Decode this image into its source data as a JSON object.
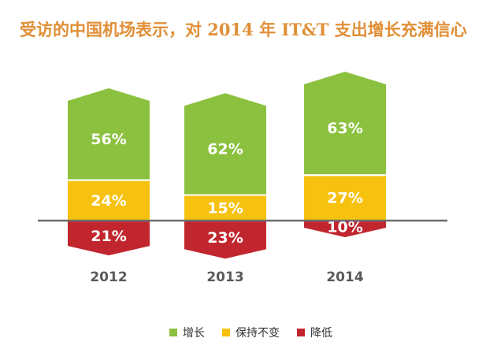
{
  "title": "受访的中国机场表示，对 2014 年 IT&T 支出增长充满信心",
  "colors": {
    "increase": "#8bc13f",
    "maintain": "#f7c10f",
    "decrease": "#c1262e",
    "baseline": "#6d6d6d",
    "tick": "#5a5a5a"
  },
  "chart_data": {
    "type": "bar",
    "stacked": true,
    "categories": [
      "2012",
      "2013",
      "2014"
    ],
    "series": [
      {
        "name": "增长",
        "key": "increase",
        "values": [
          56,
          62,
          63
        ]
      },
      {
        "name": "保持不变",
        "key": "maintain",
        "values": [
          24,
          15,
          27
        ]
      },
      {
        "name": "降低",
        "key": "decrease",
        "values": [
          21,
          23,
          10
        ]
      }
    ],
    "value_suffix": "%",
    "legend": "bottom"
  }
}
